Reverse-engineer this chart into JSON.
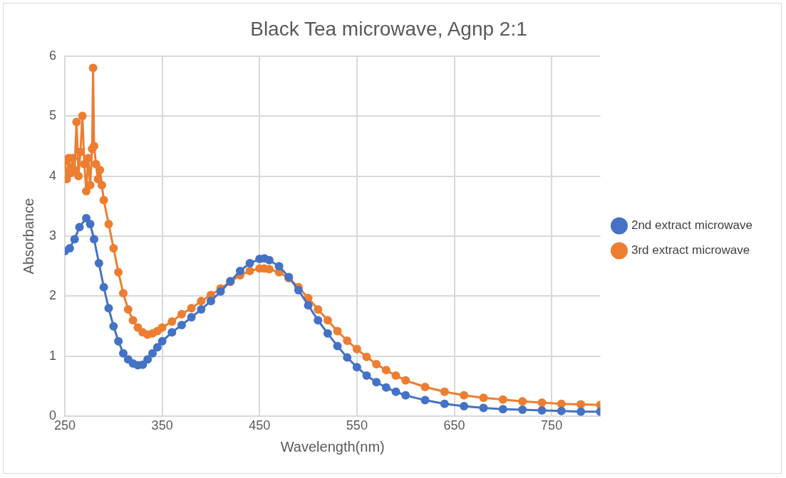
{
  "chart_data": {
    "type": "line",
    "title": "Black Tea microwave, Agnp 2:1",
    "xlabel": "Wavelength(nm)",
    "ylabel": "Absorbance",
    "xlim": [
      250,
      800
    ],
    "xticks": [
      250,
      350,
      450,
      550,
      650,
      750
    ],
    "ylim": [
      0,
      6
    ],
    "yticks": [
      0,
      1,
      2,
      3,
      4,
      5,
      6
    ],
    "grid": true,
    "legend": "right",
    "marker": "circle",
    "line_style": "solid",
    "series": [
      {
        "name": "2nd extract microwave",
        "color": "#4472c4",
        "x": [
          250,
          255,
          260,
          265,
          272,
          276,
          280,
          285,
          290,
          295,
          300,
          305,
          310,
          315,
          320,
          325,
          330,
          335,
          340,
          345,
          350,
          360,
          370,
          380,
          390,
          400,
          410,
          420,
          430,
          440,
          450,
          455,
          460,
          470,
          480,
          490,
          500,
          510,
          520,
          530,
          540,
          550,
          560,
          570,
          580,
          590,
          600,
          620,
          640,
          660,
          680,
          700,
          720,
          740,
          760,
          780,
          800
        ],
        "values": [
          2.75,
          2.8,
          2.95,
          3.15,
          3.3,
          3.2,
          2.95,
          2.55,
          2.15,
          1.8,
          1.5,
          1.25,
          1.05,
          0.95,
          0.88,
          0.85,
          0.86,
          0.95,
          1.05,
          1.15,
          1.25,
          1.4,
          1.52,
          1.65,
          1.78,
          1.92,
          2.08,
          2.25,
          2.42,
          2.55,
          2.62,
          2.63,
          2.6,
          2.5,
          2.32,
          2.1,
          1.85,
          1.6,
          1.38,
          1.17,
          0.98,
          0.82,
          0.68,
          0.57,
          0.48,
          0.41,
          0.35,
          0.27,
          0.21,
          0.17,
          0.14,
          0.12,
          0.11,
          0.1,
          0.09,
          0.08,
          0.08
        ]
      },
      {
        "name": "3rd extract microwave",
        "color": "#ed7d31",
        "x": [
          250,
          252,
          254,
          256,
          258,
          260,
          262,
          264,
          266,
          268,
          270,
          272,
          274,
          276,
          278,
          279,
          280,
          282,
          284,
          286,
          288,
          290,
          295,
          300,
          305,
          310,
          315,
          320,
          325,
          330,
          335,
          340,
          345,
          350,
          360,
          370,
          380,
          390,
          400,
          410,
          420,
          430,
          440,
          450,
          455,
          460,
          470,
          480,
          490,
          500,
          510,
          520,
          530,
          540,
          550,
          560,
          570,
          580,
          590,
          600,
          620,
          640,
          660,
          680,
          700,
          720,
          740,
          760,
          780,
          800
        ],
        "values": [
          4.25,
          3.95,
          4.3,
          4.05,
          4.3,
          4.1,
          4.9,
          4.0,
          4.4,
          5.0,
          4.2,
          3.75,
          4.3,
          3.85,
          4.45,
          5.8,
          4.5,
          4.2,
          3.95,
          4.1,
          3.85,
          3.6,
          3.2,
          2.8,
          2.4,
          2.05,
          1.78,
          1.6,
          1.48,
          1.4,
          1.36,
          1.38,
          1.42,
          1.48,
          1.58,
          1.7,
          1.8,
          1.92,
          2.02,
          2.13,
          2.24,
          2.35,
          2.42,
          2.46,
          2.46,
          2.45,
          2.4,
          2.3,
          2.15,
          1.97,
          1.78,
          1.6,
          1.42,
          1.26,
          1.12,
          0.99,
          0.87,
          0.77,
          0.68,
          0.6,
          0.49,
          0.41,
          0.35,
          0.31,
          0.28,
          0.25,
          0.23,
          0.21,
          0.2,
          0.19
        ]
      }
    ]
  }
}
